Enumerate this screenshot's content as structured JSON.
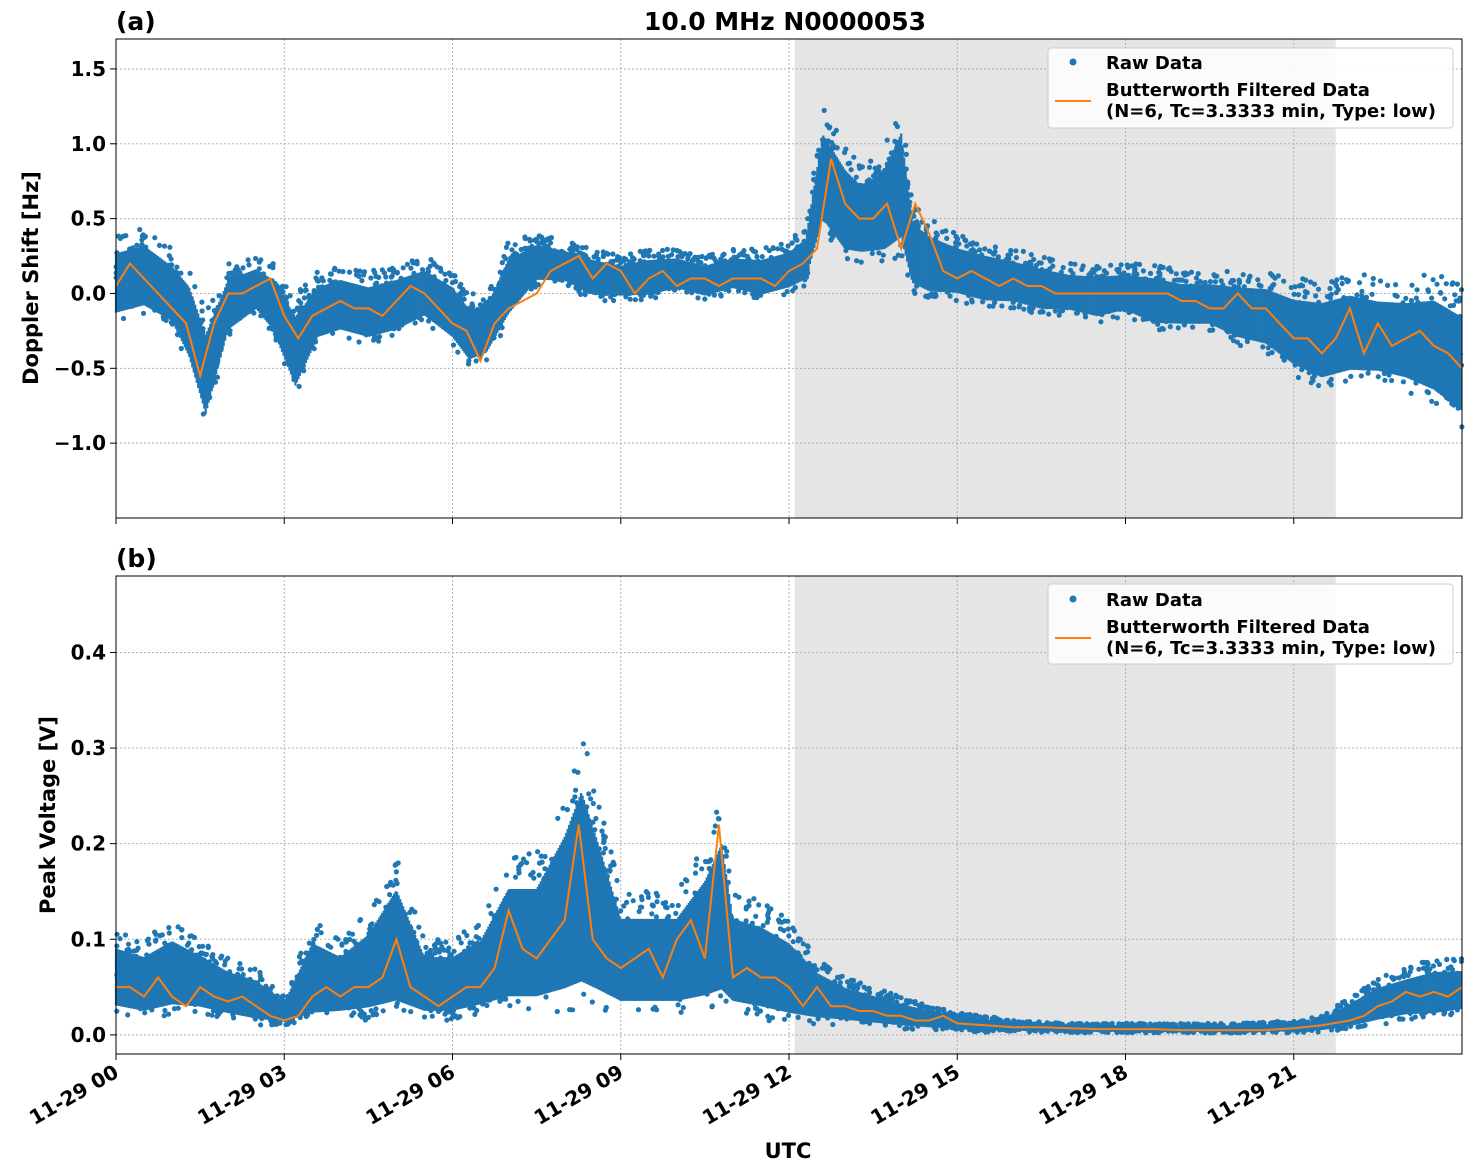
{
  "figure": {
    "title": "10.0 MHz N0000053",
    "xlabel": "UTC",
    "x_ticks": [
      "11-29 00",
      "11-29 03",
      "11-29 06",
      "11-29 09",
      "11-29 12",
      "11-29 15",
      "11-29 18",
      "11-29 21"
    ],
    "colors": {
      "raw": "#1f77b4",
      "filtered": "#ff7f0e",
      "shade": "#e5e5e5",
      "grid": "#b0b0b0"
    }
  },
  "legend": {
    "raw": "Raw Data",
    "filtered_line1": "Butterworth Filtered Data",
    "filtered_line2": "(N=6, Tc=3.3333 min, Type: low)"
  },
  "chart_data": [
    {
      "type": "scatter",
      "panel_label": "(a)",
      "ylabel": "Doppler Shift [Hz]",
      "x_unit": "hours since 11-29 00 UTC",
      "xlim": [
        0,
        24
      ],
      "ylim": [
        -1.5,
        1.7
      ],
      "y_ticks": [
        1.5,
        1.0,
        0.5,
        0.0,
        -0.5,
        -1.0
      ],
      "y_tick_labels": [
        "1.5",
        "1.0",
        "0.5",
        "0.0",
        "−0.5",
        "−1.0"
      ],
      "shaded_x": [
        12.1,
        21.75
      ],
      "grid": true,
      "legend_position": "upper right",
      "series": [
        {
          "name": "Butterworth Filtered Data",
          "x": [
            0,
            0.25,
            0.5,
            0.75,
            1.0,
            1.25,
            1.5,
            1.75,
            2.0,
            2.25,
            2.5,
            2.75,
            3.0,
            3.25,
            3.5,
            3.75,
            4.0,
            4.25,
            4.5,
            4.75,
            5.0,
            5.25,
            5.5,
            5.75,
            6.0,
            6.25,
            6.5,
            6.75,
            7.0,
            7.25,
            7.5,
            7.75,
            8.0,
            8.25,
            8.5,
            8.75,
            9.0,
            9.25,
            9.5,
            9.75,
            10.0,
            10.25,
            10.5,
            10.75,
            11.0,
            11.25,
            11.5,
            11.75,
            12.0,
            12.25,
            12.5,
            12.75,
            13.0,
            13.25,
            13.5,
            13.75,
            14.0,
            14.25,
            14.5,
            14.75,
            15.0,
            15.25,
            15.5,
            15.75,
            16.0,
            16.25,
            16.5,
            16.75,
            17.0,
            17.25,
            17.5,
            17.75,
            18.0,
            18.25,
            18.5,
            18.75,
            19.0,
            19.25,
            19.5,
            19.75,
            20.0,
            20.25,
            20.5,
            20.75,
            21.0,
            21.25,
            21.5,
            21.75,
            22.0,
            22.25,
            22.5,
            22.75,
            23.0,
            23.25,
            23.5,
            23.75,
            24.0
          ],
          "values": [
            0.05,
            0.2,
            0.1,
            0.0,
            -0.1,
            -0.2,
            -0.55,
            -0.2,
            0.0,
            0.0,
            0.05,
            0.1,
            -0.15,
            -0.3,
            -0.15,
            -0.1,
            -0.05,
            -0.1,
            -0.1,
            -0.15,
            -0.05,
            0.05,
            0.0,
            -0.1,
            -0.2,
            -0.25,
            -0.45,
            -0.2,
            -0.1,
            -0.05,
            0.0,
            0.15,
            0.2,
            0.25,
            0.1,
            0.2,
            0.15,
            0.0,
            0.1,
            0.15,
            0.05,
            0.1,
            0.1,
            0.05,
            0.1,
            0.1,
            0.1,
            0.05,
            0.15,
            0.2,
            0.3,
            0.9,
            0.6,
            0.5,
            0.5,
            0.6,
            0.3,
            0.6,
            0.4,
            0.15,
            0.1,
            0.15,
            0.1,
            0.05,
            0.1,
            0.05,
            0.05,
            0.0,
            0.0,
            0.0,
            0.0,
            0.0,
            0.0,
            0.0,
            0.0,
            0.0,
            -0.05,
            -0.05,
            -0.1,
            -0.1,
            0.0,
            -0.1,
            -0.1,
            -0.2,
            -0.3,
            -0.3,
            -0.4,
            -0.3,
            -0.1,
            -0.4,
            -0.2,
            -0.35,
            -0.3,
            -0.25,
            -0.35,
            -0.4,
            -0.5
          ]
        },
        {
          "name": "Raw Data",
          "band_x": [
            0,
            0.5,
            1.0,
            1.3,
            1.6,
            2.0,
            2.5,
            2.8,
            3.2,
            3.6,
            4.0,
            4.5,
            5.0,
            5.5,
            6.0,
            6.3,
            6.6,
            7.0,
            7.5,
            8.0,
            8.5,
            9.0,
            9.5,
            10.0,
            10.5,
            11.0,
            11.5,
            12.0,
            12.3,
            12.6,
            13.0,
            13.3,
            13.7,
            14.0,
            14.2,
            14.5,
            15.0,
            15.5,
            16.0,
            16.5,
            17.0,
            17.5,
            18.0,
            18.5,
            19.0,
            19.5,
            20.0,
            20.5,
            21.0,
            21.5,
            22.0,
            22.5,
            23.0,
            23.5,
            24.0
          ],
          "band_low": [
            -0.2,
            -0.15,
            -0.25,
            -0.5,
            -0.9,
            -0.3,
            -0.15,
            -0.3,
            -0.7,
            -0.35,
            -0.3,
            -0.35,
            -0.3,
            -0.2,
            -0.35,
            -0.5,
            -0.45,
            -0.2,
            0.05,
            0.05,
            -0.05,
            -0.05,
            -0.05,
            0.0,
            -0.05,
            0.0,
            -0.05,
            0.0,
            0.05,
            0.4,
            0.2,
            0.2,
            0.2,
            0.25,
            0.0,
            -0.05,
            -0.05,
            -0.1,
            -0.1,
            -0.15,
            -0.15,
            -0.2,
            -0.15,
            -0.25,
            -0.25,
            -0.25,
            -0.35,
            -0.4,
            -0.55,
            -0.65,
            -0.6,
            -0.6,
            -0.65,
            -0.75,
            -0.9
          ],
          "band_high": [
            0.4,
            0.45,
            0.3,
            0.2,
            -0.1,
            0.2,
            0.25,
            0.2,
            0.0,
            0.15,
            0.2,
            0.15,
            0.2,
            0.25,
            0.15,
            0.0,
            0.0,
            0.35,
            0.4,
            0.35,
            0.3,
            0.25,
            0.3,
            0.3,
            0.25,
            0.3,
            0.3,
            0.35,
            0.45,
            1.25,
            1.0,
            0.85,
            1.0,
            1.3,
            0.6,
            0.5,
            0.4,
            0.35,
            0.3,
            0.25,
            0.2,
            0.2,
            0.2,
            0.2,
            0.15,
            0.15,
            0.15,
            0.15,
            0.1,
            0.1,
            0.15,
            0.1,
            0.1,
            0.15,
            0.05
          ]
        }
      ]
    },
    {
      "type": "scatter",
      "panel_label": "(b)",
      "ylabel": "Peak Voltage [V]",
      "x_unit": "hours since 11-29 00 UTC",
      "xlim": [
        0,
        24
      ],
      "ylim": [
        -0.02,
        0.48
      ],
      "y_ticks": [
        0.4,
        0.3,
        0.2,
        0.1,
        0.0
      ],
      "y_tick_labels": [
        "0.4",
        "0.3",
        "0.2",
        "0.1",
        "0.0"
      ],
      "shaded_x": [
        12.1,
        21.75
      ],
      "grid": true,
      "legend_position": "upper right",
      "series": [
        {
          "name": "Butterworth Filtered Data",
          "x": [
            0,
            0.25,
            0.5,
            0.75,
            1.0,
            1.25,
            1.5,
            1.75,
            2.0,
            2.25,
            2.5,
            2.75,
            3.0,
            3.25,
            3.5,
            3.75,
            4.0,
            4.25,
            4.5,
            4.75,
            5.0,
            5.25,
            5.5,
            5.75,
            6.0,
            6.25,
            6.5,
            6.75,
            7.0,
            7.25,
            7.5,
            7.75,
            8.0,
            8.25,
            8.5,
            8.75,
            9.0,
            9.25,
            9.5,
            9.75,
            10.0,
            10.25,
            10.5,
            10.75,
            11.0,
            11.25,
            11.5,
            11.75,
            12.0,
            12.25,
            12.5,
            12.75,
            13.0,
            13.25,
            13.5,
            13.75,
            14.0,
            14.25,
            14.5,
            14.75,
            15.0,
            15.5,
            16.0,
            16.5,
            17.0,
            17.5,
            18.0,
            18.5,
            19.0,
            19.5,
            20.0,
            20.5,
            21.0,
            21.5,
            22.0,
            22.25,
            22.5,
            22.75,
            23.0,
            23.25,
            23.5,
            23.75,
            24.0
          ],
          "values": [
            0.05,
            0.05,
            0.04,
            0.06,
            0.04,
            0.03,
            0.05,
            0.04,
            0.035,
            0.04,
            0.03,
            0.02,
            0.015,
            0.02,
            0.04,
            0.05,
            0.04,
            0.05,
            0.05,
            0.06,
            0.1,
            0.05,
            0.04,
            0.03,
            0.04,
            0.05,
            0.05,
            0.07,
            0.13,
            0.09,
            0.08,
            0.1,
            0.12,
            0.22,
            0.1,
            0.08,
            0.07,
            0.08,
            0.09,
            0.06,
            0.1,
            0.12,
            0.08,
            0.22,
            0.06,
            0.07,
            0.06,
            0.06,
            0.05,
            0.03,
            0.05,
            0.03,
            0.03,
            0.025,
            0.025,
            0.02,
            0.02,
            0.015,
            0.015,
            0.02,
            0.012,
            0.01,
            0.008,
            0.008,
            0.007,
            0.006,
            0.006,
            0.006,
            0.005,
            0.005,
            0.005,
            0.005,
            0.007,
            0.01,
            0.015,
            0.02,
            0.03,
            0.035,
            0.045,
            0.04,
            0.045,
            0.04,
            0.05
          ]
        },
        {
          "name": "Raw Data",
          "band_x": [
            0,
            0.5,
            1.0,
            1.5,
            2.0,
            2.5,
            3.0,
            3.5,
            4.0,
            4.5,
            5.0,
            5.5,
            6.0,
            6.5,
            7.0,
            7.5,
            8.0,
            8.3,
            8.6,
            9.0,
            9.5,
            10.0,
            10.5,
            10.8,
            11.0,
            11.5,
            12.0,
            12.5,
            13.0,
            13.5,
            14.0,
            14.5,
            15.0,
            15.5,
            16.0,
            17.0,
            18.0,
            19.0,
            20.0,
            21.0,
            21.5,
            22.0,
            22.5,
            23.0,
            23.5,
            24.0
          ],
          "band_low": [
            0.02,
            0.015,
            0.02,
            0.02,
            0.015,
            0.01,
            0.01,
            0.01,
            0.015,
            0.015,
            0.015,
            0.015,
            0.015,
            0.02,
            0.02,
            0.02,
            0.02,
            0.02,
            0.02,
            0.02,
            0.02,
            0.02,
            0.02,
            0.02,
            0.02,
            0.015,
            0.01,
            0.01,
            0.01,
            0.008,
            0.006,
            0.005,
            0.004,
            0.003,
            0.003,
            0.002,
            0.002,
            0.002,
            0.002,
            0.002,
            0.003,
            0.005,
            0.01,
            0.015,
            0.015,
            0.02
          ],
          "band_high": [
            0.11,
            0.1,
            0.12,
            0.1,
            0.08,
            0.07,
            0.04,
            0.12,
            0.1,
            0.13,
            0.19,
            0.1,
            0.1,
            0.12,
            0.19,
            0.19,
            0.26,
            0.32,
            0.25,
            0.15,
            0.15,
            0.15,
            0.2,
            0.25,
            0.15,
            0.14,
            0.12,
            0.08,
            0.06,
            0.05,
            0.04,
            0.03,
            0.025,
            0.02,
            0.015,
            0.012,
            0.012,
            0.012,
            0.012,
            0.015,
            0.02,
            0.04,
            0.06,
            0.07,
            0.08,
            0.08
          ]
        }
      ]
    }
  ]
}
